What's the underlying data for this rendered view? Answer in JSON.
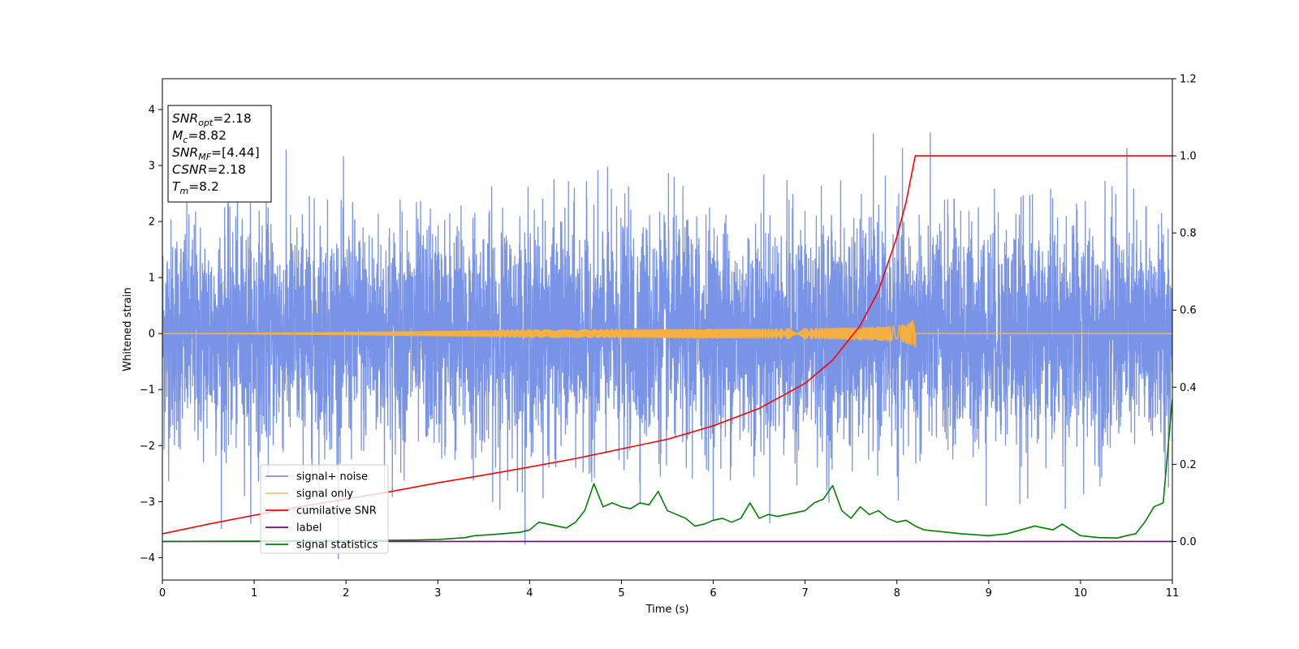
{
  "chart_data": {
    "type": "line",
    "xlabel": "Time (s)",
    "ylabel": "Whitened strain",
    "xlim": [
      0,
      11
    ],
    "ylim_left": [
      -4.4,
      4.55
    ],
    "ylim_right": [
      -0.1,
      1.2
    ],
    "x_ticks": [
      0,
      1,
      2,
      3,
      4,
      5,
      6,
      7,
      8,
      9,
      10,
      11
    ],
    "y_ticks_left": [
      -4,
      -3,
      -2,
      -1,
      0,
      1,
      2,
      3,
      4
    ],
    "y_ticks_right": [
      0.0,
      0.2,
      0.4,
      0.6,
      0.8,
      1.0,
      1.2
    ],
    "legend_position": "lower-left",
    "info_box": {
      "lines": [
        {
          "sym": "SNR",
          "sub": "opt",
          "value": "=2.18"
        },
        {
          "sym": "M",
          "sub": "c",
          "value": "=8.82"
        },
        {
          "sym": "SNR",
          "sub": "MF",
          "value": "=[4.44]"
        },
        {
          "sym": "CSNR",
          "sub": "",
          "value": "=2.18"
        },
        {
          "sym": "T",
          "sub": "m",
          "value": "=8.2"
        }
      ]
    },
    "series": [
      {
        "name": "signal+ noise",
        "color": "#5b7be0",
        "axis": "left",
        "kind": "white-noise",
        "std": 1.0,
        "duration": 11
      },
      {
        "name": "signal only",
        "color": "#f5b041",
        "axis": "left",
        "kind": "chirp",
        "end_time": 8.2,
        "peak_amplitude": 0.25
      },
      {
        "name": "cumilative SNR",
        "color": "#ff0000",
        "axis": "right",
        "x": [
          0,
          0.5,
          1,
          1.5,
          2,
          2.5,
          3,
          3.5,
          4,
          4.5,
          5,
          5.5,
          6,
          6.5,
          7,
          7.3,
          7.6,
          7.8,
          8.0,
          8.1,
          8.15,
          8.2,
          11
        ],
        "y": [
          0.02,
          0.045,
          0.068,
          0.09,
          0.11,
          0.13,
          0.152,
          0.172,
          0.193,
          0.215,
          0.24,
          0.265,
          0.3,
          0.345,
          0.41,
          0.47,
          0.56,
          0.65,
          0.79,
          0.88,
          0.94,
          1.0,
          1.0
        ]
      },
      {
        "name": "label",
        "color": "#800080",
        "axis": "right",
        "x": [
          0,
          11
        ],
        "y": [
          0,
          0
        ]
      },
      {
        "name": "signal statistics",
        "color": "#008000",
        "axis": "right",
        "x": [
          0,
          1,
          2,
          2.8,
          3.0,
          3.3,
          3.4,
          3.6,
          3.7,
          3.9,
          4.0,
          4.1,
          4.2,
          4.3,
          4.4,
          4.5,
          4.6,
          4.7,
          4.8,
          4.9,
          5.0,
          5.1,
          5.2,
          5.3,
          5.4,
          5.5,
          5.6,
          5.7,
          5.8,
          5.9,
          6.0,
          6.1,
          6.2,
          6.3,
          6.4,
          6.5,
          6.6,
          6.7,
          6.8,
          6.9,
          7.0,
          7.1,
          7.2,
          7.3,
          7.4,
          7.5,
          7.6,
          7.7,
          7.8,
          7.9,
          8.0,
          8.1,
          8.2,
          8.3,
          8.5,
          8.7,
          9.0,
          9.2,
          9.5,
          9.7,
          9.8,
          9.9,
          10.0,
          10.2,
          10.4,
          10.5,
          10.6,
          10.7,
          10.8,
          10.9,
          11.0
        ],
        "y": [
          0,
          0.001,
          0.002,
          0.004,
          0.005,
          0.01,
          0.015,
          0.018,
          0.02,
          0.024,
          0.03,
          0.05,
          0.045,
          0.04,
          0.035,
          0.05,
          0.08,
          0.15,
          0.09,
          0.1,
          0.09,
          0.085,
          0.1,
          0.095,
          0.13,
          0.08,
          0.07,
          0.06,
          0.04,
          0.045,
          0.055,
          0.06,
          0.05,
          0.06,
          0.1,
          0.06,
          0.07,
          0.065,
          0.07,
          0.075,
          0.08,
          0.1,
          0.11,
          0.145,
          0.08,
          0.06,
          0.09,
          0.07,
          0.08,
          0.06,
          0.05,
          0.055,
          0.04,
          0.03,
          0.025,
          0.02,
          0.015,
          0.02,
          0.04,
          0.03,
          0.045,
          0.03,
          0.015,
          0.01,
          0.009,
          0.015,
          0.02,
          0.05,
          0.09,
          0.1,
          0.37
        ]
      }
    ]
  }
}
